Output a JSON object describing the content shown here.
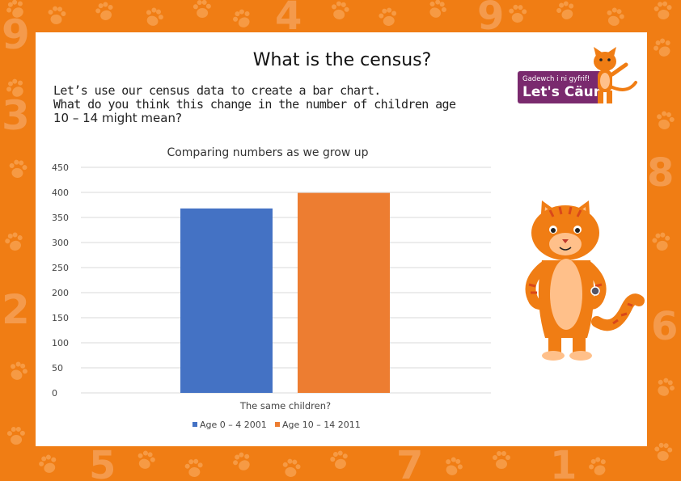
{
  "slide": {
    "title": "What is the census?",
    "intro_line1": "Let’s use our census data to create a bar chart.",
    "intro_line2": "What do you think this change in the number of children age",
    "intro_line3": "10 – 14 might mean?"
  },
  "badge": {
    "line1": "Gadewch i ni gyfrif!",
    "line2": "Let's Cäunt!"
  },
  "icons": [
    "paw-print-icon",
    "cat-mascot-icon"
  ],
  "colors": {
    "background": "#f07d14",
    "series1": "#4472c4",
    "series2": "#ed7d31",
    "badge": "#7a2a6e"
  },
  "chart_data": {
    "type": "bar",
    "title": "Comparing numbers as we grow up",
    "categories": [
      "The same children?"
    ],
    "series": [
      {
        "name": "Age 0 – 4 2001",
        "values": [
          368
        ]
      },
      {
        "name": "Age 10 – 14 2011",
        "values": [
          399
        ]
      }
    ],
    "ylim": [
      0,
      450
    ],
    "yticks": [
      0,
      50,
      100,
      150,
      200,
      250,
      300,
      350,
      400,
      450
    ],
    "grid": true,
    "legend": "bottom"
  }
}
